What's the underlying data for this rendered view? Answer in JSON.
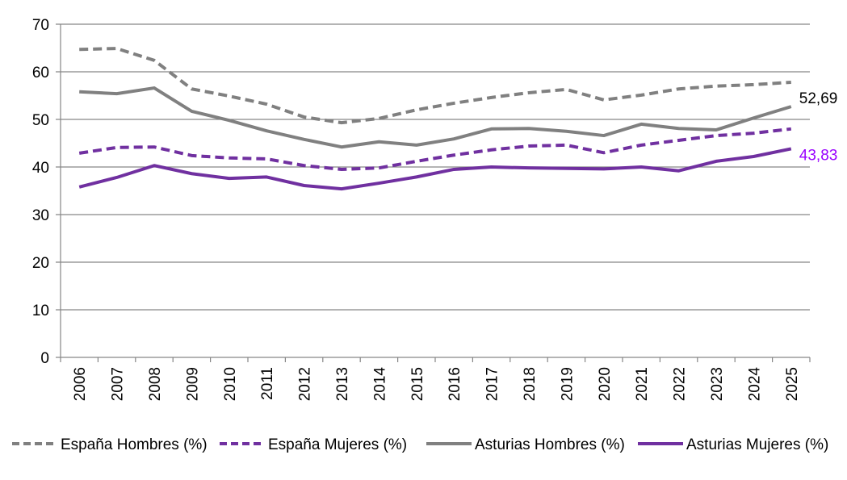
{
  "chart_data": {
    "type": "line",
    "title": "",
    "xlabel": "",
    "ylabel": "",
    "ylim": [
      0,
      70
    ],
    "yticks": [
      "0",
      "10",
      "20",
      "30",
      "40",
      "50",
      "60",
      "70"
    ],
    "grid": true,
    "legend_position": "bottom",
    "categories": [
      "2006",
      "2007",
      "2008",
      "2009",
      "2010",
      "2011",
      "2012",
      "2013",
      "2014",
      "2015",
      "2016",
      "2017",
      "2018",
      "2019",
      "2020",
      "2021",
      "2022",
      "2023",
      "2024",
      "2025"
    ],
    "series": [
      {
        "name": "España Hombres (%)",
        "color": "#808080",
        "dashed": true,
        "values": [
          64.7,
          64.9,
          62.4,
          56.4,
          54.9,
          53.2,
          50.5,
          49.3,
          50.2,
          52.0,
          53.4,
          54.6,
          55.6,
          56.3,
          54.1,
          55.1,
          56.4,
          57.0,
          57.3,
          57.8
        ]
      },
      {
        "name": "España Mujeres (%)",
        "color": "#7030a0",
        "dashed": true,
        "values": [
          42.9,
          44.1,
          44.2,
          42.4,
          41.9,
          41.7,
          40.3,
          39.5,
          39.8,
          41.2,
          42.5,
          43.6,
          44.4,
          44.6,
          43.0,
          44.6,
          45.6,
          46.6,
          47.1,
          48.0
        ]
      },
      {
        "name": "Asturias Hombres (%)",
        "color": "#808080",
        "dashed": false,
        "values": [
          55.8,
          55.4,
          56.6,
          51.7,
          49.8,
          47.6,
          45.8,
          44.2,
          45.3,
          44.6,
          45.9,
          48.0,
          48.1,
          47.5,
          46.6,
          49.0,
          48.1,
          47.8,
          50.3,
          52.69
        ],
        "end_label": "52,69",
        "end_label_color": "#000000"
      },
      {
        "name": "Asturias Mujeres (%)",
        "color": "#7030a0",
        "dashed": false,
        "values": [
          35.8,
          37.8,
          40.3,
          38.6,
          37.6,
          37.9,
          36.1,
          35.4,
          36.6,
          37.9,
          39.5,
          40.0,
          39.8,
          39.7,
          39.6,
          40.0,
          39.2,
          41.2,
          42.2,
          43.83
        ],
        "end_label": "43,83",
        "end_label_color": "#9900ff"
      }
    ]
  }
}
